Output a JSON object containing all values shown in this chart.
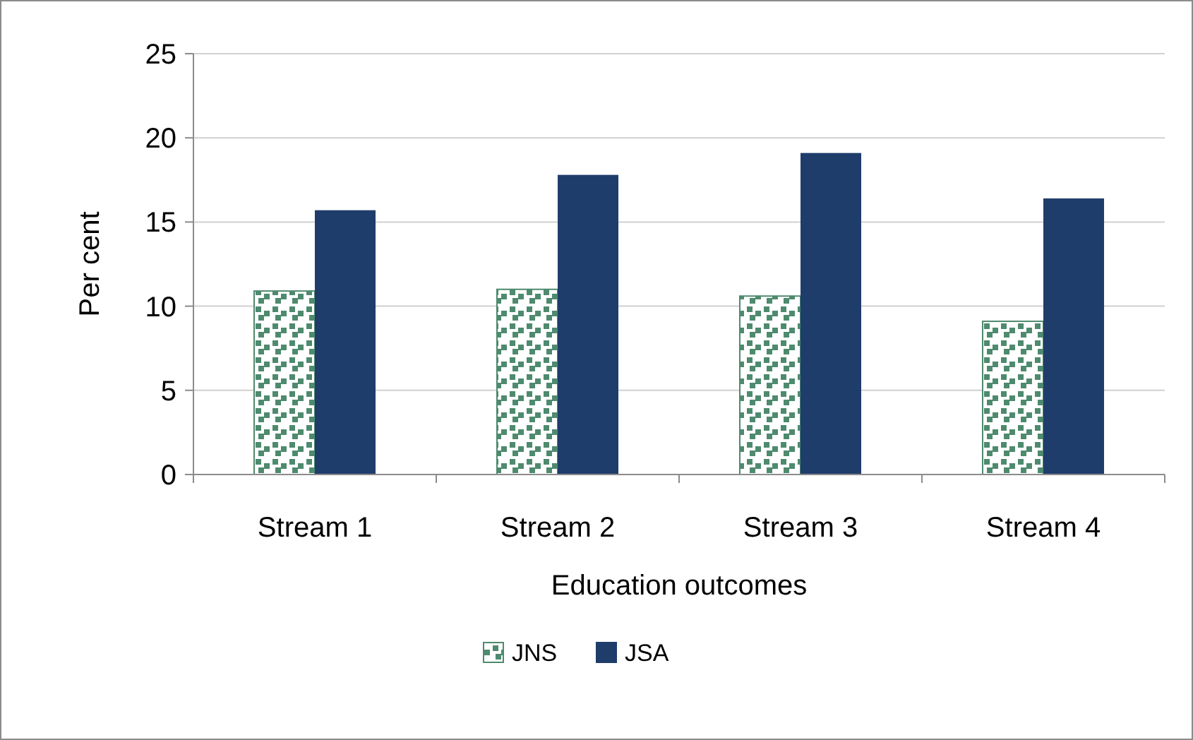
{
  "chart_data": {
    "type": "bar",
    "xlabel": "Education outcomes",
    "ylabel": "Per cent",
    "categories": [
      "Stream 1",
      "Stream 2",
      "Stream 3",
      "Stream 4"
    ],
    "series": [
      {
        "name": "JNS",
        "color": "#4e8a6e",
        "values": [
          10.9,
          11.0,
          10.6,
          9.1
        ]
      },
      {
        "name": "JSA",
        "color": "#1f3d6b",
        "values": [
          15.7,
          17.8,
          19.1,
          16.4
        ]
      }
    ],
    "ylim": [
      0,
      25
    ],
    "yticks": [
      0,
      5,
      10,
      15,
      20,
      25
    ],
    "grid": "y",
    "legend": "bottom"
  }
}
